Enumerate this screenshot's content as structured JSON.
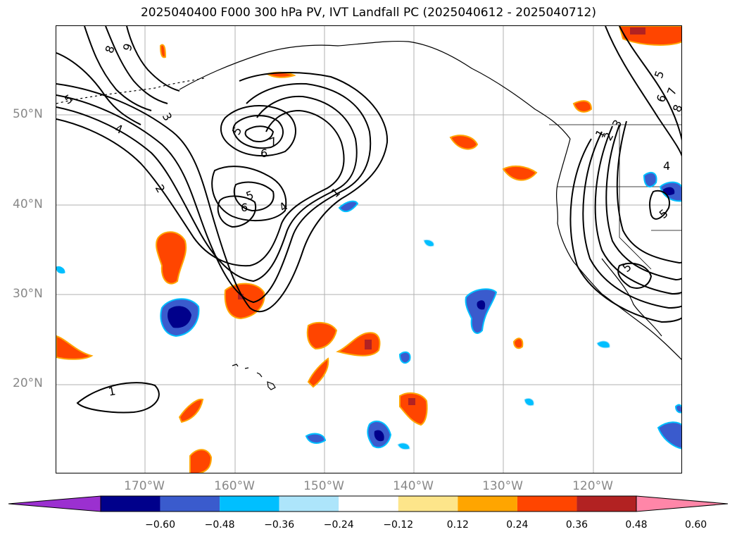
{
  "title": "2025040400 F000 300 hPa PV, IVT Landfall PC (2025040612 - 2025040712)",
  "lat_labels": [
    "50°N",
    "40°N",
    "30°N",
    "20°N"
  ],
  "lon_labels": [
    "170°W",
    "160°W",
    "150°W",
    "140°W",
    "130°W",
    "120°W"
  ],
  "contour_labels": [
    "8",
    "9",
    "5",
    "4",
    "3",
    "5",
    "7",
    "6",
    "2",
    "5",
    "6",
    "4",
    "1",
    "1",
    "5",
    "6",
    "7",
    "8",
    "1",
    "2",
    "3",
    "4",
    "5",
    "5"
  ],
  "colorbar": {
    "ticks": [
      "−0.60",
      "−0.48",
      "−0.36",
      "−0.24",
      "−0.12",
      "0.12",
      "0.24",
      "0.36",
      "0.48",
      "0.60"
    ],
    "colors": [
      "#9b30d0",
      "#00008b",
      "#3a5bcd",
      "#00bfff",
      "#ade5fb",
      "#ffffff",
      "#fde58a",
      "#ffa500",
      "#ff4500",
      "#b22222",
      "#ff86a8"
    ]
  },
  "colors": {
    "positive_strong": "#ff4500",
    "positive_edge": "#ffa500",
    "positive_max": "#b22222",
    "negative_strong": "#00008b",
    "negative_mid": "#3a5bcd",
    "negative_weak": "#00bfff",
    "grid": "#b0b0b0",
    "contour": "#000000"
  }
}
